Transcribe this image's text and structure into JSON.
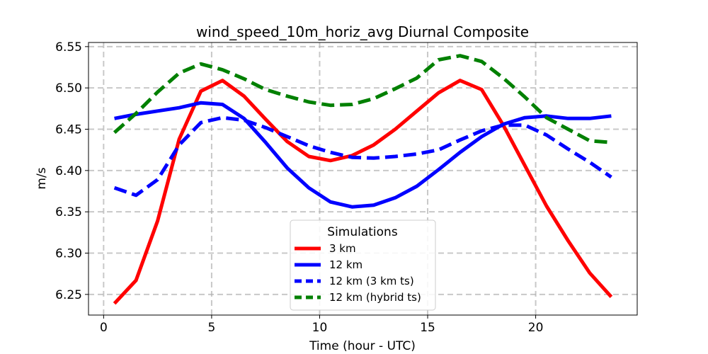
{
  "chart_data": {
    "type": "line",
    "title": "wind_speed_10m_horiz_avg Diurnal Composite",
    "xlabel": "Time (hour - UTC)",
    "ylabel": "m/s",
    "xlim": [
      -0.7,
      24.7
    ],
    "ylim": [
      6.225,
      6.555
    ],
    "xticks": [
      0,
      5,
      10,
      15,
      20
    ],
    "xtick_labels": [
      "0",
      "5",
      "10",
      "15",
      "20"
    ],
    "yticks": [
      6.25,
      6.3,
      6.35,
      6.4,
      6.45,
      6.5,
      6.55
    ],
    "ytick_labels": [
      "6.25",
      "6.30",
      "6.35",
      "6.40",
      "6.45",
      "6.50",
      "6.55"
    ],
    "grid": true,
    "legend": {
      "title": "Simulations",
      "placement": "lower center"
    },
    "x": [
      0.5,
      1.5,
      2.5,
      3.5,
      4.5,
      5.5,
      6.5,
      7.5,
      8.5,
      9.5,
      10.5,
      11.5,
      12.5,
      13.5,
      14.5,
      15.5,
      16.5,
      17.5,
      18.5,
      19.5,
      20.5,
      21.5,
      22.5,
      23.5
    ],
    "series": [
      {
        "name": "3 km",
        "color": "#ff0000",
        "dash": "solid",
        "values": [
          6.239,
          6.267,
          6.339,
          6.438,
          6.496,
          6.509,
          6.49,
          6.462,
          6.435,
          6.417,
          6.412,
          6.418,
          6.431,
          6.45,
          6.472,
          6.494,
          6.509,
          6.498,
          6.455,
          6.406,
          6.357,
          6.315,
          6.276,
          6.247
        ]
      },
      {
        "name": "12 km",
        "color": "#0000ff",
        "dash": "solid",
        "values": [
          6.463,
          6.468,
          6.472,
          6.476,
          6.482,
          6.48,
          6.463,
          6.434,
          6.403,
          6.379,
          6.362,
          6.356,
          6.358,
          6.367,
          6.381,
          6.401,
          6.422,
          6.441,
          6.456,
          6.464,
          6.466,
          6.463,
          6.463,
          6.466
        ]
      },
      {
        "name": "12 km (3 km ts)",
        "color": "#0000ff",
        "dash": "dashed",
        "values": [
          6.379,
          6.37,
          6.389,
          6.431,
          6.458,
          6.464,
          6.461,
          6.452,
          6.441,
          6.43,
          6.422,
          6.416,
          6.415,
          6.417,
          6.42,
          6.425,
          6.437,
          6.448,
          6.455,
          6.455,
          6.443,
          6.426,
          6.41,
          6.392
        ]
      },
      {
        "name": "12 km (hybrid ts)",
        "color": "#008000",
        "dash": "dashed",
        "values": [
          6.446,
          6.469,
          6.495,
          6.518,
          6.529,
          6.522,
          6.511,
          6.498,
          6.49,
          6.483,
          6.479,
          6.48,
          6.487,
          6.499,
          6.512,
          6.534,
          6.539,
          6.532,
          6.512,
          6.489,
          6.464,
          6.45,
          6.436,
          6.434
        ]
      }
    ]
  }
}
